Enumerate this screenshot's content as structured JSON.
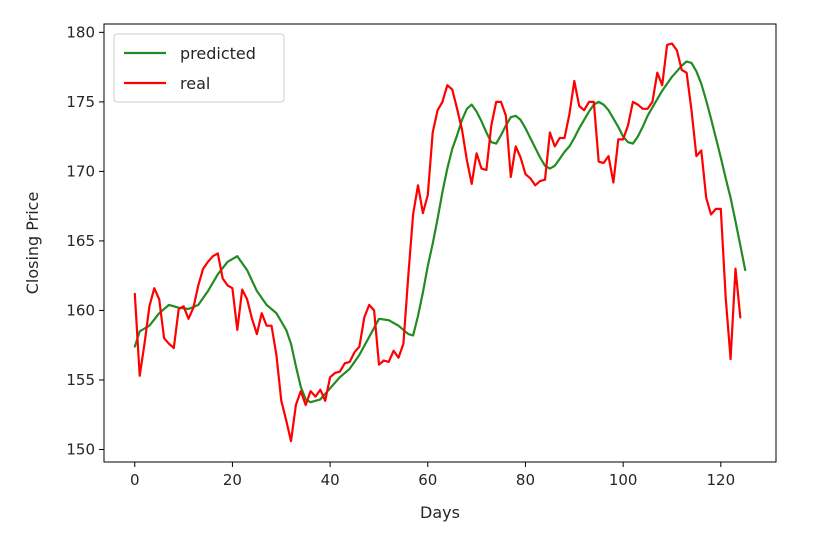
{
  "chart_data": {
    "type": "line",
    "xlabel": "Days",
    "ylabel": "Closing Price",
    "xlim": [
      -6.3,
      131.3
    ],
    "ylim": [
      149.1,
      180.6
    ],
    "xticks": [
      0,
      20,
      40,
      60,
      80,
      100,
      120
    ],
    "yticks": [
      150,
      155,
      160,
      165,
      170,
      175,
      180
    ],
    "grid": false,
    "legend_position": "upper-left",
    "series": [
      {
        "name": "predicted",
        "color": "#228b22",
        "points": [
          [
            0,
            157.4
          ],
          [
            1,
            158.5
          ],
          [
            3,
            158.9
          ],
          [
            5,
            159.8
          ],
          [
            7,
            160.4
          ],
          [
            9,
            160.2
          ],
          [
            11,
            160.1
          ],
          [
            13,
            160.4
          ],
          [
            15,
            161.4
          ],
          [
            17,
            162.6
          ],
          [
            19,
            163.5
          ],
          [
            21,
            163.9
          ],
          [
            23,
            162.9
          ],
          [
            25,
            161.4
          ],
          [
            27,
            160.4
          ],
          [
            29,
            159.8
          ],
          [
            31,
            158.6
          ],
          [
            32,
            157.6
          ],
          [
            33,
            156.0
          ],
          [
            34,
            154.5
          ],
          [
            35,
            153.6
          ],
          [
            36,
            153.4
          ],
          [
            38,
            153.6
          ],
          [
            40,
            154.4
          ],
          [
            42,
            155.2
          ],
          [
            44,
            155.8
          ],
          [
            46,
            156.8
          ],
          [
            48,
            158.1
          ],
          [
            50,
            159.4
          ],
          [
            52,
            159.3
          ],
          [
            54,
            158.9
          ],
          [
            56,
            158.3
          ],
          [
            57,
            158.2
          ],
          [
            58,
            159.6
          ],
          [
            59,
            161.3
          ],
          [
            60,
            163.2
          ],
          [
            61,
            164.8
          ],
          [
            62,
            166.6
          ],
          [
            63,
            168.5
          ],
          [
            64,
            170.2
          ],
          [
            65,
            171.6
          ],
          [
            66,
            172.6
          ],
          [
            67,
            173.7
          ],
          [
            68,
            174.5
          ],
          [
            69,
            174.8
          ],
          [
            70,
            174.3
          ],
          [
            71,
            173.6
          ],
          [
            72,
            172.8
          ],
          [
            73,
            172.1
          ],
          [
            74,
            172.0
          ],
          [
            75,
            172.6
          ],
          [
            76,
            173.3
          ],
          [
            77,
            173.9
          ],
          [
            78,
            174.0
          ],
          [
            79,
            173.7
          ],
          [
            80,
            173.1
          ],
          [
            81,
            172.4
          ],
          [
            82,
            171.7
          ],
          [
            83,
            171.0
          ],
          [
            84,
            170.4
          ],
          [
            85,
            170.2
          ],
          [
            86,
            170.4
          ],
          [
            87,
            170.9
          ],
          [
            88,
            171.4
          ],
          [
            89,
            171.8
          ],
          [
            90,
            172.4
          ],
          [
            91,
            173.1
          ],
          [
            92,
            173.7
          ],
          [
            93,
            174.3
          ],
          [
            94,
            174.8
          ],
          [
            95,
            175.0
          ],
          [
            96,
            174.8
          ],
          [
            97,
            174.4
          ],
          [
            98,
            173.8
          ],
          [
            99,
            173.2
          ],
          [
            100,
            172.5
          ],
          [
            101,
            172.1
          ],
          [
            102,
            172.0
          ],
          [
            103,
            172.5
          ],
          [
            104,
            173.2
          ],
          [
            105,
            174.0
          ],
          [
            106,
            174.6
          ],
          [
            107,
            175.2
          ],
          [
            108,
            175.8
          ],
          [
            109,
            176.3
          ],
          [
            110,
            176.8
          ],
          [
            111,
            177.2
          ],
          [
            112,
            177.6
          ],
          [
            113,
            177.9
          ],
          [
            114,
            177.8
          ],
          [
            115,
            177.2
          ],
          [
            116,
            176.3
          ],
          [
            117,
            175.1
          ],
          [
            118,
            173.8
          ],
          [
            119,
            172.4
          ],
          [
            120,
            171.0
          ],
          [
            121,
            169.5
          ],
          [
            122,
            168.1
          ],
          [
            123,
            166.4
          ],
          [
            124,
            164.7
          ],
          [
            125,
            162.9
          ]
        ]
      },
      {
        "name": "real",
        "color": "#ff0000",
        "points": [
          [
            0,
            161.2
          ],
          [
            1,
            155.3
          ],
          [
            2,
            157.6
          ],
          [
            3,
            160.3
          ],
          [
            4,
            161.6
          ],
          [
            5,
            160.8
          ],
          [
            6,
            158.0
          ],
          [
            7,
            157.6
          ],
          [
            8,
            157.3
          ],
          [
            9,
            160.1
          ],
          [
            10,
            160.3
          ],
          [
            11,
            159.4
          ],
          [
            12,
            160.2
          ],
          [
            13,
            161.8
          ],
          [
            14,
            163.0
          ],
          [
            15,
            163.5
          ],
          [
            16,
            163.9
          ],
          [
            17,
            164.1
          ],
          [
            18,
            162.3
          ],
          [
            19,
            161.8
          ],
          [
            20,
            161.6
          ],
          [
            21,
            158.6
          ],
          [
            22,
            161.5
          ],
          [
            23,
            160.8
          ],
          [
            24,
            159.4
          ],
          [
            25,
            158.3
          ],
          [
            26,
            159.8
          ],
          [
            27,
            158.9
          ],
          [
            28,
            158.9
          ],
          [
            29,
            156.8
          ],
          [
            30,
            153.5
          ],
          [
            31,
            152.1
          ],
          [
            32,
            150.6
          ],
          [
            33,
            153.2
          ],
          [
            34,
            154.2
          ],
          [
            35,
            153.2
          ],
          [
            36,
            154.2
          ],
          [
            37,
            153.8
          ],
          [
            38,
            154.3
          ],
          [
            39,
            153.5
          ],
          [
            40,
            155.2
          ],
          [
            41,
            155.5
          ],
          [
            42,
            155.6
          ],
          [
            43,
            156.2
          ],
          [
            44,
            156.3
          ],
          [
            45,
            157.0
          ],
          [
            46,
            157.4
          ],
          [
            47,
            159.5
          ],
          [
            48,
            160.4
          ],
          [
            49,
            160.0
          ],
          [
            50,
            156.1
          ],
          [
            51,
            156.4
          ],
          [
            52,
            156.3
          ],
          [
            53,
            157.1
          ],
          [
            54,
            156.6
          ],
          [
            55,
            157.6
          ],
          [
            56,
            162.5
          ],
          [
            57,
            166.9
          ],
          [
            58,
            169.0
          ],
          [
            59,
            167.0
          ],
          [
            60,
            168.3
          ],
          [
            61,
            172.8
          ],
          [
            62,
            174.4
          ],
          [
            63,
            175.0
          ],
          [
            64,
            176.2
          ],
          [
            65,
            175.9
          ],
          [
            66,
            174.5
          ],
          [
            67,
            173.0
          ],
          [
            68,
            170.8
          ],
          [
            69,
            169.1
          ],
          [
            70,
            171.3
          ],
          [
            71,
            170.2
          ],
          [
            72,
            170.1
          ],
          [
            73,
            173.3
          ],
          [
            74,
            175.0
          ],
          [
            75,
            175.0
          ],
          [
            76,
            174.0
          ],
          [
            77,
            169.6
          ],
          [
            78,
            171.8
          ],
          [
            79,
            171.0
          ],
          [
            80,
            169.8
          ],
          [
            81,
            169.5
          ],
          [
            82,
            169.0
          ],
          [
            83,
            169.3
          ],
          [
            84,
            169.4
          ],
          [
            85,
            172.8
          ],
          [
            86,
            171.8
          ],
          [
            87,
            172.4
          ],
          [
            88,
            172.4
          ],
          [
            89,
            174.1
          ],
          [
            90,
            176.5
          ],
          [
            91,
            174.7
          ],
          [
            92,
            174.4
          ],
          [
            93,
            175.0
          ],
          [
            94,
            175.0
          ],
          [
            95,
            170.7
          ],
          [
            96,
            170.6
          ],
          [
            97,
            171.1
          ],
          [
            98,
            169.2
          ],
          [
            99,
            172.3
          ],
          [
            100,
            172.3
          ],
          [
            101,
            173.3
          ],
          [
            102,
            175.0
          ],
          [
            103,
            174.8
          ],
          [
            104,
            174.5
          ],
          [
            105,
            174.5
          ],
          [
            106,
            175.0
          ],
          [
            107,
            177.1
          ],
          [
            108,
            176.2
          ],
          [
            109,
            179.1
          ],
          [
            110,
            179.2
          ],
          [
            111,
            178.7
          ],
          [
            112,
            177.3
          ],
          [
            113,
            177.1
          ],
          [
            114,
            174.4
          ],
          [
            115,
            171.1
          ],
          [
            116,
            171.5
          ],
          [
            117,
            168.1
          ],
          [
            118,
            166.9
          ],
          [
            119,
            167.3
          ],
          [
            120,
            167.3
          ],
          [
            121,
            160.9
          ],
          [
            122,
            156.5
          ],
          [
            123,
            163.0
          ],
          [
            124,
            159.5
          ]
        ]
      }
    ]
  }
}
